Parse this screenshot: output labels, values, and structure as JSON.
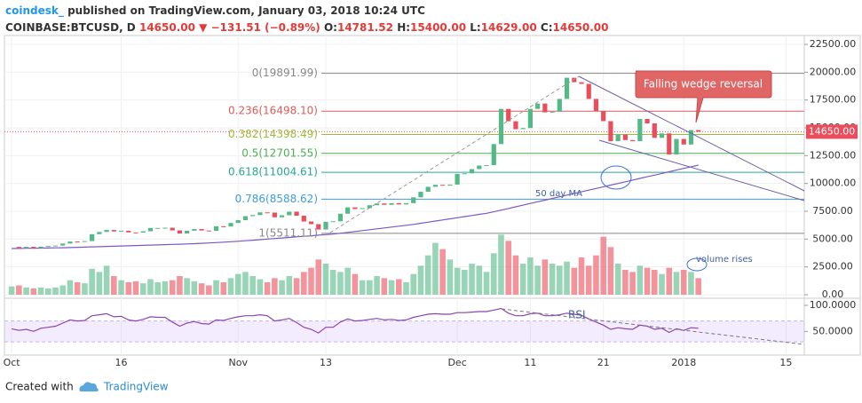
{
  "header": {
    "author": "coindesk_",
    "published": "published on TradingView.com, January 03, 2018 10:24 UTC",
    "symbol": "COINBASE:BTCUSD, D",
    "price": "14650.00",
    "arrow": "▼",
    "change": "−131.51 (−0.89%)",
    "ohlc": [
      {
        "key": "O:",
        "value": "14781.52"
      },
      {
        "key": "H:",
        "value": "15400.00"
      },
      {
        "key": "L:",
        "value": "14629.00"
      },
      {
        "key": "C:",
        "value": "14650.00"
      }
    ]
  },
  "chart_data": {
    "type": "candlestick",
    "categories": [
      "Oct",
      null,
      null,
      null,
      null,
      null,
      null,
      null,
      null,
      null,
      null,
      null,
      null,
      null,
      null,
      "16",
      null,
      null,
      null,
      null,
      null,
      null,
      null,
      null,
      null,
      null,
      null,
      null,
      null,
      null,
      null,
      "Nov",
      null,
      null,
      null,
      null,
      null,
      null,
      null,
      null,
      null,
      null,
      null,
      "13",
      null,
      null,
      null,
      null,
      null,
      null,
      null,
      null,
      null,
      null,
      null,
      null,
      null,
      null,
      null,
      null,
      null,
      "Dec",
      null,
      null,
      null,
      null,
      null,
      null,
      null,
      null,
      null,
      "11",
      null,
      null,
      null,
      null,
      null,
      null,
      null,
      null,
      null,
      "21",
      null,
      null,
      null,
      null,
      null,
      null,
      null,
      null,
      null,
      null,
      "2018",
      null,
      null,
      null,
      null,
      null,
      null,
      null,
      null,
      null,
      null,
      null,
      null,
      null,
      "15",
      null,
      null
    ],
    "close": [
      4300,
      4200,
      4300,
      4200,
      4320,
      4380,
      4420,
      4600,
      4780,
      4760,
      4820,
      5440,
      5640,
      5820,
      5690,
      5750,
      5600,
      5580,
      5700,
      6000,
      6000,
      6020,
      5780,
      5500,
      5750,
      5900,
      5770,
      5740,
      6150,
      6130,
      6450,
      6700,
      7060,
      7160,
      7400,
      7380,
      6960,
      7140,
      7460,
      7100,
      6580,
      6340,
      5860,
      6550,
      6600,
      7280,
      7850,
      7700,
      7780,
      8040,
      8200,
      8080,
      8230,
      8110,
      8230,
      8750,
      9250,
      9700,
      9880,
      9810,
      9900,
      10860,
      10910,
      11290,
      11610,
      11650,
      13540,
      16700,
      15590,
      14880,
      14980,
      16700,
      17180,
      16390,
      16450,
      17600,
      19500,
      19100,
      18950,
      17600,
      16500,
      15600,
      13800,
      14400,
      13900,
      13800,
      15800,
      15400,
      14100,
      14500,
      12600,
      14000,
      13500,
      14800,
      14650,
      null,
      null,
      null,
      null,
      null,
      null,
      null,
      null,
      null,
      null,
      null,
      null,
      null,
      null
    ],
    "volume": [
      8,
      9,
      7,
      6,
      7,
      6,
      7,
      9,
      14,
      12,
      11,
      25,
      22,
      28,
      18,
      14,
      12,
      13,
      11,
      15,
      12,
      13,
      14,
      18,
      16,
      13,
      11,
      9,
      14,
      12,
      16,
      20,
      22,
      18,
      15,
      12,
      16,
      14,
      18,
      16,
      22,
      26,
      34,
      30,
      24,
      22,
      26,
      20,
      14,
      14,
      18,
      16,
      14,
      15,
      12,
      20,
      28,
      38,
      50,
      44,
      34,
      26,
      24,
      30,
      28,
      22,
      40,
      58,
      52,
      38,
      30,
      36,
      28,
      34,
      30,
      28,
      32,
      26,
      36,
      28,
      38,
      56,
      46,
      30,
      24,
      22,
      28,
      26,
      24,
      20,
      26,
      22,
      24,
      22,
      16,
      null,
      null,
      null,
      null,
      null,
      null,
      null,
      null,
      null,
      null,
      null,
      null,
      null,
      null
    ],
    "ma": [
      4150,
      4160,
      4170,
      4180,
      4190,
      4200,
      4210,
      4220,
      4240,
      4260,
      4280,
      4300,
      4320,
      4340,
      4360,
      4380,
      4400,
      4420,
      4440,
      4460,
      4480,
      4500,
      4520,
      4540,
      4560,
      4590,
      4620,
      4650,
      4680,
      4720,
      4760,
      4800,
      4850,
      4900,
      4950,
      5000,
      5050,
      5100,
      5150,
      5200,
      5250,
      5300,
      5350,
      5400,
      5450,
      5520,
      5600,
      5680,
      5760,
      5840,
      5920,
      6000,
      6080,
      6160,
      6240,
      6320,
      6420,
      6520,
      6620,
      6720,
      6820,
      6920,
      7020,
      7120,
      7220,
      7320,
      7450,
      7600,
      7750,
      7900,
      8050,
      8200,
      8350,
      8500,
      8650,
      8800,
      8950,
      9100,
      9250,
      9400,
      9550,
      9700,
      9850,
      10000,
      10150,
      10300,
      10450,
      10600,
      10750,
      10900,
      11050,
      11200,
      11350,
      11500,
      11650,
      null,
      null,
      null,
      null,
      null,
      null,
      null,
      null,
      null,
      null,
      null,
      null,
      null,
      null
    ],
    "rsi": [
      55,
      52,
      54,
      50,
      56,
      58,
      60,
      66,
      72,
      70,
      71,
      80,
      82,
      84,
      78,
      79,
      72,
      70,
      73,
      78,
      77,
      77,
      68,
      60,
      66,
      69,
      65,
      64,
      72,
      71,
      75,
      78,
      80,
      80,
      82,
      80,
      70,
      72,
      75,
      67,
      58,
      54,
      47,
      58,
      58,
      68,
      74,
      70,
      71,
      73,
      75,
      72,
      73,
      71,
      72,
      77,
      80,
      83,
      84,
      83,
      83,
      86,
      86,
      87,
      88,
      88,
      91,
      94,
      85,
      80,
      80,
      84,
      85,
      80,
      80,
      82,
      85,
      83,
      81,
      74,
      68,
      62,
      54,
      57,
      55,
      54,
      62,
      60,
      54,
      56,
      48,
      55,
      52,
      57,
      56,
      null,
      null,
      null,
      null,
      null,
      null,
      null,
      null,
      null,
      null,
      null,
      null,
      null,
      null
    ],
    "up_color": "#53b987",
    "down_color": "#eb4d5c",
    "ma_color": "#7e57c2",
    "rsi_color": "#8e44ad",
    "ylim": [
      0,
      22500
    ],
    "yticks": [
      {
        "value": 0,
        "label": "0.00"
      },
      {
        "value": 2500,
        "label": "2500.00"
      },
      {
        "value": 5000,
        "label": "5000.00"
      },
      {
        "value": 7500,
        "label": "7500.00"
      },
      {
        "value": 10000,
        "label": "10000.00"
      },
      {
        "value": 12500,
        "label": "12500.00"
      },
      {
        "value": 15000,
        "label": "15000.00"
      },
      {
        "value": 17500,
        "label": "17500.00"
      },
      {
        "value": 20000,
        "label": "20000.00"
      },
      {
        "value": 22500,
        "label": "22500.00"
      }
    ],
    "vlim": [
      0,
      60
    ],
    "rsi_ylim": [
      8,
      100
    ],
    "rsi_ticks": [
      {
        "value": 50,
        "label": "50.0000"
      },
      {
        "value": 100,
        "label": "100.0000"
      }
    ],
    "rsi_bands": [
      30,
      70
    ],
    "last_price": {
      "value": 14650,
      "label": "14650.00"
    },
    "grid": true,
    "fib": [
      {
        "label": "0(19891.99)",
        "value": 19891.99,
        "color": "#888888"
      },
      {
        "label": "0.236(16498.10)",
        "value": 16498.1,
        "color": "#e05a5a"
      },
      {
        "label": "0.382(14398.49)",
        "value": 14398.49,
        "color": "#9bbb3a"
      },
      {
        "label": "0.5(12701.55)",
        "value": 12701.55,
        "color": "#4caf50"
      },
      {
        "label": "0.618(11004.61)",
        "value": 11004.61,
        "color": "#26a69a"
      },
      {
        "label": "0.786(8588.62)",
        "value": 8588.62,
        "color": "#3d9be0"
      },
      {
        "label": "1(5511.11)",
        "value": 5511.11,
        "color": "#888888"
      }
    ],
    "annotations": {
      "callout": "Falling wedge reversal",
      "ma_label": "50 day MA",
      "volume_label": "volume rises",
      "rsi_label": "RSI"
    }
  },
  "footer": {
    "created": "Created with",
    "brand": "TradingView"
  }
}
